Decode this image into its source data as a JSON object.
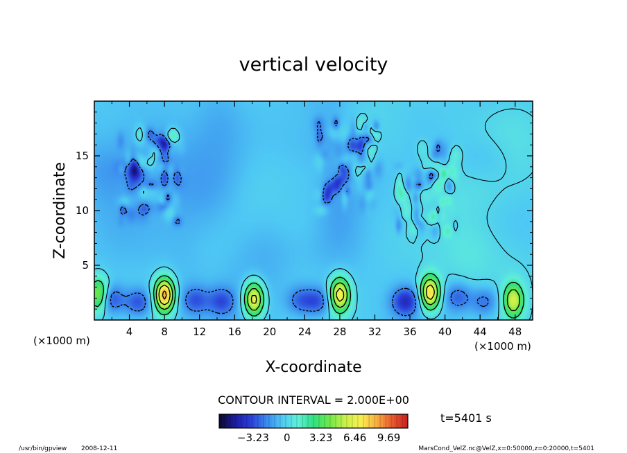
{
  "chart_data": {
    "type": "heatmap",
    "title": "vertical velocity",
    "xlabel": "X-coordinate",
    "ylabel": "Z-coordinate",
    "x_unit": "(×1000 m)",
    "y_unit": "(×1000 m)",
    "xlim": [
      0,
      50
    ],
    "ylim": [
      0,
      20
    ],
    "x_ticks": [
      "4",
      "8",
      "12",
      "16",
      "20",
      "24",
      "28",
      "32",
      "36",
      "40",
      "44",
      "48"
    ],
    "x_tick_values": [
      4,
      8,
      12,
      16,
      20,
      24,
      28,
      32,
      36,
      40,
      44,
      48
    ],
    "y_ticks": [
      "5",
      "10",
      "15"
    ],
    "y_tick_values": [
      5,
      10,
      15
    ],
    "contour_interval": "CONTOUR INTERVAL = 2.000E+00",
    "time_label": "t=5401 s",
    "colorbar_ticks": [
      "−3.23",
      "0",
      "3.23",
      "6.46",
      "9.69"
    ],
    "colorbar_tick_values": [
      -3.23,
      0,
      3.23,
      6.46,
      9.69
    ],
    "colorbar_range": [
      -6.46,
      11.5
    ],
    "colormap": [
      "#0a0a28",
      "#1c1ca0",
      "#2a3ed8",
      "#3a88ee",
      "#4ec8f4",
      "#5ef0d8",
      "#30e080",
      "#6ee84a",
      "#c8f04a",
      "#f8f050",
      "#f8b040",
      "#e85a30",
      "#c81e1e"
    ],
    "features": {
      "updrafts": [
        {
          "x": 0.5,
          "z": 2.3,
          "w": 5.5
        },
        {
          "x": 8.0,
          "z": 2.3,
          "w": 9.0
        },
        {
          "x": 18.2,
          "z": 1.9,
          "w": 7.5
        },
        {
          "x": 28.0,
          "z": 2.3,
          "w": 7.5
        },
        {
          "x": 38.3,
          "z": 2.5,
          "w": 8.0
        },
        {
          "x": 47.8,
          "z": 1.8,
          "w": 6.0
        }
      ],
      "downdrafts": [
        {
          "x": 1.8,
          "z": 1.9,
          "w": -3.0
        },
        {
          "x": 5.0,
          "z": 1.6,
          "w": -2.8
        },
        {
          "x": 11.5,
          "z": 1.8,
          "w": -2.4
        },
        {
          "x": 14.5,
          "z": 1.7,
          "w": -2.5
        },
        {
          "x": 23.5,
          "z": 1.8,
          "w": -2.2
        },
        {
          "x": 25.5,
          "z": 1.7,
          "w": -2.6
        },
        {
          "x": 35.5,
          "z": 1.7,
          "w": -3.6
        },
        {
          "x": 41.5,
          "z": 2.1,
          "w": -2.4
        },
        {
          "x": 44.5,
          "z": 1.7,
          "w": -2.2
        }
      ],
      "turbulent_regions": [
        {
          "x": 6.5,
          "z": 13.0
        },
        {
          "x": 29.0,
          "z": 14.0
        },
        {
          "x": 38.0,
          "z": 12.0
        }
      ]
    }
  },
  "footer": {
    "program": "/usr/bin/gpview",
    "date": "2008-12-11",
    "source": "MarsCond_VelZ.nc@VelZ,x=0:50000,z=0:20000,t=5401"
  }
}
